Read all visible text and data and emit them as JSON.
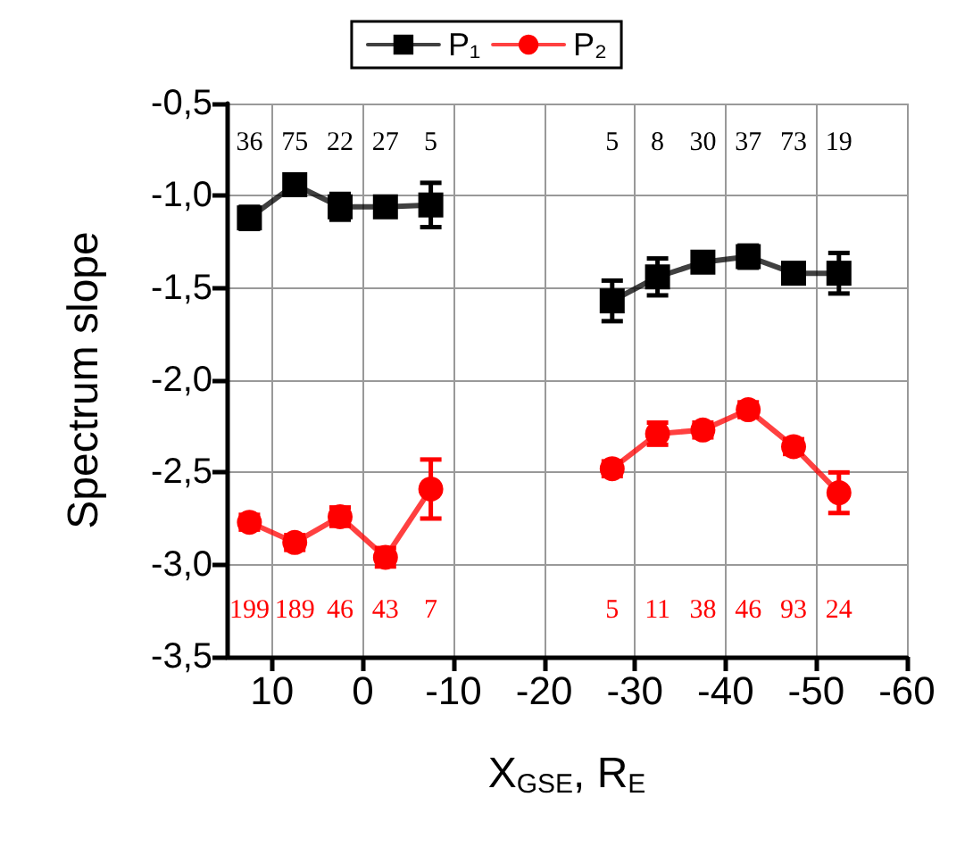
{
  "chart_data": {
    "type": "line",
    "xlabel": "X$_{GSE}$, R$_{E}$",
    "ylabel": "Spectrum slope",
    "x": [
      12.5,
      7.5,
      2.5,
      -2.5,
      -7.5,
      -17.5,
      -27.5,
      -32.5,
      -37.5,
      -42.5,
      -47.5,
      -52.5
    ],
    "series": [
      {
        "name": "P₁",
        "color": "#000000",
        "marker": "square",
        "values": [
          -1.12,
          -0.94,
          -1.06,
          -1.06,
          -1.05,
          null,
          -1.57,
          -1.44,
          -1.36,
          -1.33,
          -1.42,
          -1.42
        ],
        "errors": [
          0.06,
          0.04,
          0.07,
          0.05,
          0.12,
          null,
          0.11,
          0.1,
          0.05,
          0.06,
          0.04,
          0.11
        ]
      },
      {
        "name": "P₂",
        "color": "#ff0000",
        "marker": "circle",
        "values": [
          -2.77,
          -2.88,
          -2.74,
          -2.96,
          -2.59,
          null,
          -2.48,
          -2.29,
          -2.27,
          -2.16,
          -2.36,
          -2.61
        ],
        "errors": [
          0.04,
          0.04,
          0.05,
          0.05,
          0.16,
          null,
          0.04,
          0.06,
          0.04,
          0.04,
          0.04,
          0.11
        ]
      }
    ],
    "annotations": [
      "36",
      "75",
      "22",
      "27",
      "5",
      "5",
      "8",
      "30",
      "37",
      "73",
      "19",
      "199",
      "189",
      "46",
      "43",
      "7",
      "5",
      "11",
      "38",
      "46",
      "93",
      "24"
    ],
    "xlim": [
      15,
      -60
    ],
    "xticks": [
      10,
      0,
      -10,
      -20,
      -30,
      -40,
      -50,
      -60
    ],
    "ylim": [
      -3.5,
      -0.5
    ],
    "yticks": [
      {
        "value": -3.5,
        "label": "-3,5"
      },
      {
        "value": -3.0,
        "label": "-3,0"
      },
      {
        "value": -2.5,
        "label": "-2,5"
      },
      {
        "value": -2.0,
        "label": "-2,0"
      },
      {
        "value": -1.5,
        "label": "-1,5"
      },
      {
        "value": -1.0,
        "label": "-1,0"
      },
      {
        "value": -0.5,
        "label": "-0,5"
      }
    ],
    "grid": true,
    "legend": "top",
    "line_style": "solid"
  }
}
